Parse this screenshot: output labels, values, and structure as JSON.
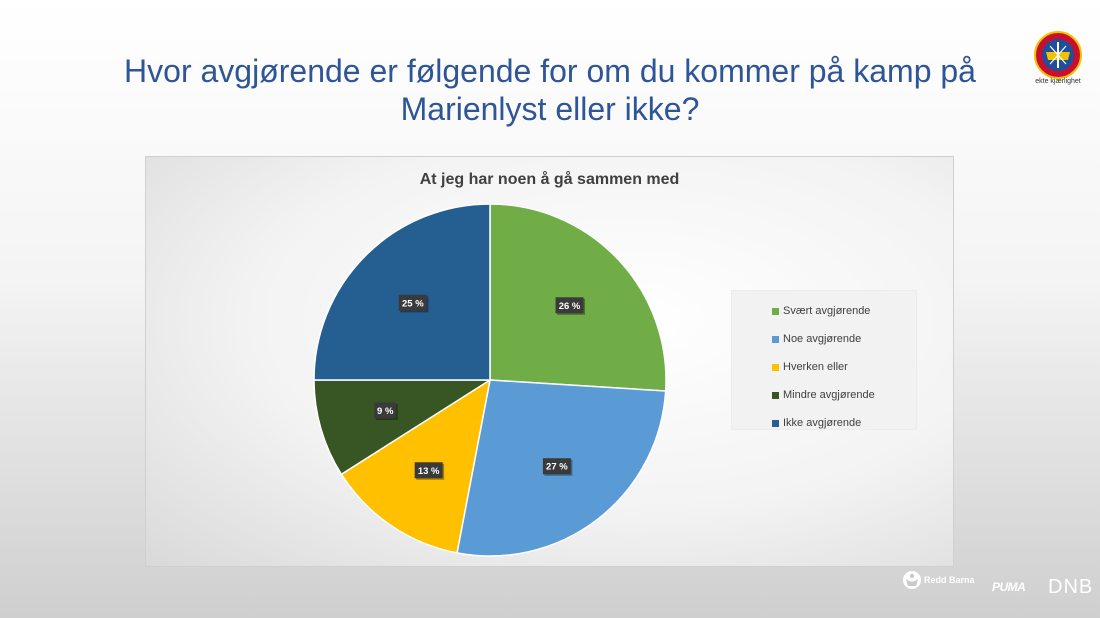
{
  "slide": {
    "title": "Hvor avgjørende er følgende for om du kommer på kamp på Marienlyst eller ikke?",
    "club_slogan": "ekte kjærlighet"
  },
  "chart_data": {
    "type": "pie",
    "title": "At jeg har noen å gå sammen med",
    "categories": [
      "Svært avgjørende",
      "Noe avgjørende",
      "Hverken eller",
      "Mindre avgjørende",
      "Ikke avgjørende"
    ],
    "values": [
      26,
      27,
      13,
      9,
      25
    ],
    "data_labels": [
      "26 %",
      "27 %",
      "13 %",
      "9 %",
      "25 %"
    ],
    "colors": [
      "#70ad47",
      "#5b9bd5",
      "#ffc000",
      "#375623",
      "#255e91"
    ],
    "start_angle": "12 o'clock",
    "direction": "clockwise",
    "legend_position": "right"
  },
  "sponsors": {
    "redd_barna": "Redd Barna",
    "puma": "PUMA",
    "dnb": "DNB"
  },
  "icons": {
    "club_logo": "club-crest-icon",
    "redd_barna_logo": "redd-barna-icon"
  }
}
